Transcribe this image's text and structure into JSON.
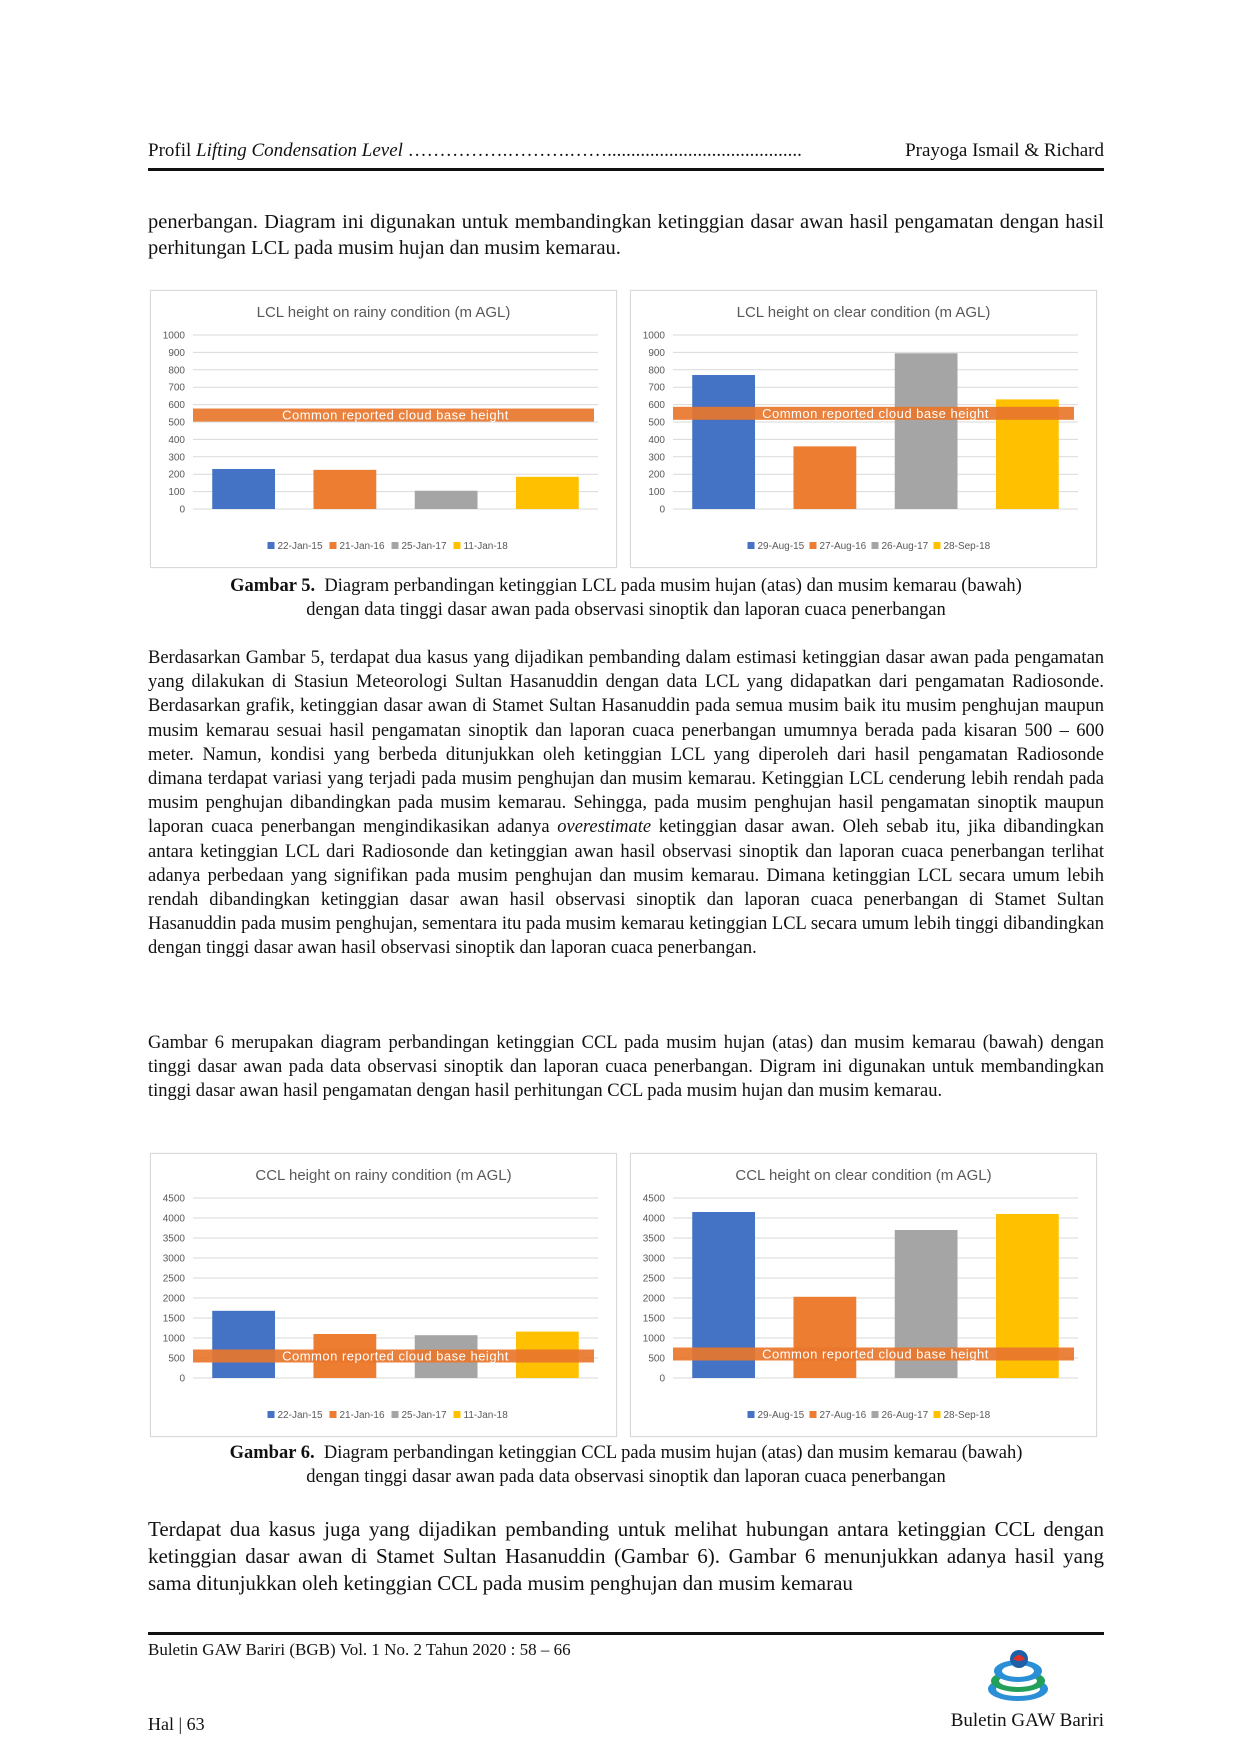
{
  "header": {
    "left_plain": "Profil ",
    "left_italic": "Lifting Condensation Level",
    "dots": " …………….……….…….........................................",
    "right": "Prayoga Ismail & Richard"
  },
  "paragraphs": {
    "top": "penerbangan. Diagram ini digunakan untuk membandingkan ketinggian dasar awan hasil pengamatan dengan hasil perhitungan LCL pada musim hujan dan musim kemarau.",
    "mid1_a": "Berdasarkan Gambar 5, terdapat dua kasus yang dijadikan pembanding dalam estimasi ketinggian dasar awan pada pengamatan yang dilakukan di Stasiun Meteorologi Sultan Hasanuddin dengan data LCL yang didapatkan dari pengamatan Radiosonde. Berdasarkan grafik, ketinggian dasar awan di Stamet Sultan Hasanuddin pada semua musim baik itu musim penghujan maupun musim kemarau sesuai hasil pengamatan sinoptik dan laporan cuaca penerbangan umumnya berada pada kisaran 500 – 600 meter. Namun, kondisi yang berbeda ditunjukkan oleh ketinggian LCL yang diperoleh dari hasil pengamatan Radiosonde dimana terdapat variasi yang terjadi pada musim penghujan dan musim kemarau. Ketinggian LCL cenderung lebih rendah pada musim penghujan dibandingkan pada musim kemarau. Sehingga, pada musim penghujan hasil pengamatan sinoptik maupun laporan cuaca penerbangan mengindikasikan adanya ",
    "mid1_italic": "overestimate",
    "mid1_b": " ketinggian dasar awan. Oleh sebab itu, jika dibandingkan antara ketinggian LCL dari Radiosonde dan ketinggian awan hasil observasi sinoptik dan laporan cuaca penerbangan terlihat adanya perbedaan yang signifikan pada musim penghujan dan musim kemarau. Dimana ketinggian LCL secara umum lebih rendah dibandingkan ketinggian dasar awan hasil observasi sinoptik dan laporan cuaca penerbangan di Stamet Sultan Hasanuddin pada musim penghujan, sementara itu pada musim kemarau ketinggian LCL secara umum lebih tinggi dibandingkan dengan tinggi dasar awan hasil observasi sinoptik dan laporan cuaca penerbangan.",
    "mid2": "Gambar 6 merupakan diagram perbandingan ketinggian CCL pada musim hujan (atas) dan musim kemarau (bawah) dengan tinggi dasar awan pada data observasi sinoptik dan laporan cuaca penerbangan. Digram ini digunakan untuk membandingkan tinggi dasar awan hasil pengamatan dengan hasil perhitungan CCL pada musim hujan dan musim kemarau.",
    "bottom": "Terdapat dua kasus juga yang dijadikan pembanding untuk melihat hubungan antara ketinggian CCL dengan ketinggian dasar awan di Stamet Sultan Hasanuddin (Gambar 6). Gambar 6 menunjukkan adanya hasil yang sama ditunjukkan oleh ketinggian CCL pada musim penghujan dan musim kemarau"
  },
  "captions": {
    "fig5_label": "Gambar 5.",
    "fig5_line1": "Diagram perbandingan ketinggian LCL pada musim hujan (atas) dan musim kemarau (bawah)",
    "fig5_line2": "dengan data tinggi dasar awan pada observasi sinoptik dan laporan cuaca penerbangan",
    "fig6_label": "Gambar 6.",
    "fig6_line1": "Diagram perbandingan ketinggian CCL pada musim hujan (atas) dan musim kemarau (bawah)",
    "fig6_line2": "dengan tinggi dasar awan pada data observasi sinoptik dan laporan cuaca penerbangan"
  },
  "colors": {
    "series": [
      "#4472C4",
      "#ED7D31",
      "#A5A5A5",
      "#FFC000"
    ],
    "band": "#E8762D",
    "gridline": "#D9D9D9",
    "text": "#595959"
  },
  "chart_data": [
    {
      "id": "lcl-rainy",
      "type": "bar",
      "title": "LCL height on rainy condition (m AGL)",
      "categories": [
        "22-Jan-15",
        "21-Jan-16",
        "25-Jan-17",
        "11-Jan-18"
      ],
      "values": [
        230,
        225,
        105,
        185
      ],
      "ylim": [
        0,
        1000
      ],
      "yticks": [
        0,
        100,
        200,
        300,
        400,
        500,
        600,
        700,
        800,
        900,
        1000
      ],
      "band": {
        "label": "Common reported cloud base height",
        "value": 540
      },
      "grid": true,
      "legend": "bottom"
    },
    {
      "id": "lcl-clear",
      "type": "bar",
      "title": "LCL height on clear condition (m AGL)",
      "categories": [
        "29-Aug-15",
        "27-Aug-16",
        "26-Aug-17",
        "28-Sep-18"
      ],
      "values": [
        770,
        360,
        895,
        630
      ],
      "ylim": [
        0,
        1000
      ],
      "yticks": [
        0,
        100,
        200,
        300,
        400,
        500,
        600,
        700,
        800,
        900,
        1000
      ],
      "band": {
        "label": "Common reported cloud base height",
        "value": 550
      },
      "grid": true,
      "legend": "bottom"
    },
    {
      "id": "ccl-rainy",
      "type": "bar",
      "title": "CCL height on rainy condition (m AGL)",
      "categories": [
        "22-Jan-15",
        "21-Jan-16",
        "25-Jan-17",
        "11-Jan-18"
      ],
      "values": [
        1680,
        1100,
        1070,
        1160
      ],
      "ylim": [
        0,
        4500
      ],
      "yticks": [
        0,
        500,
        1000,
        1500,
        2000,
        2500,
        3000,
        3500,
        4000,
        4500
      ],
      "band": {
        "label": "Common reported cloud base height",
        "value": 550
      },
      "grid": true,
      "legend": "bottom"
    },
    {
      "id": "ccl-clear",
      "type": "bar",
      "title": "CCL height on clear condition (m AGL)",
      "categories": [
        "29-Aug-15",
        "27-Aug-16",
        "26-Aug-17",
        "28-Sep-18"
      ],
      "values": [
        4150,
        2030,
        3700,
        4100
      ],
      "ylim": [
        0,
        4500
      ],
      "yticks": [
        0,
        500,
        1000,
        1500,
        2000,
        2500,
        3000,
        3500,
        4000,
        4500
      ],
      "band": {
        "label": "Common reported cloud base height",
        "value": 600
      },
      "grid": true,
      "legend": "bottom"
    }
  ],
  "footer": {
    "journal": "Buletin GAW Bariri (BGB) Vol. 1 No. 2 Tahun 2020 : 58 – 66",
    "page": "Hal | 63",
    "brand": "Buletin GAW Bariri",
    "logo_icon": "gaw-bariri-logo-icon"
  }
}
